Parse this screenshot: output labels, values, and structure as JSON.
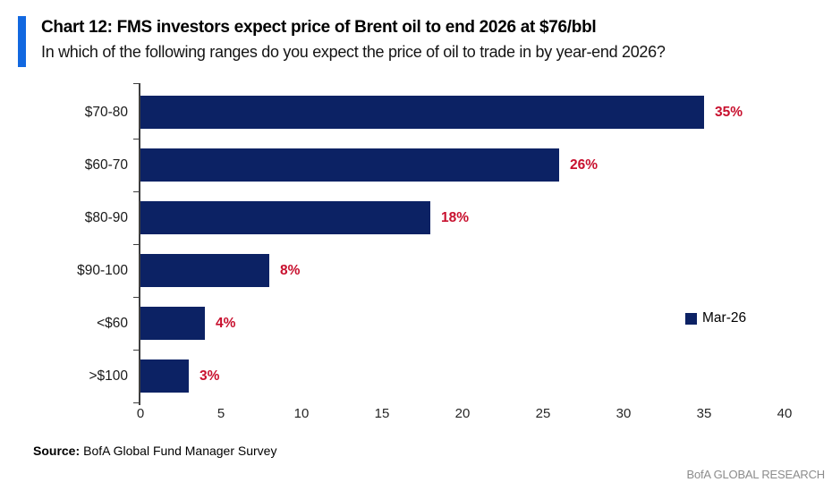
{
  "header": {
    "title": "Chart 12: FMS investors expect price of Brent oil to end 2026 at $76/bbl",
    "subtitle": "In which of the following ranges do you expect the price of oil to trade in by year-end 2026?",
    "accent_color": "#1268e0"
  },
  "chart_data": {
    "type": "bar",
    "orientation": "horizontal",
    "title": "Chart 12: FMS investors expect price of Brent oil to end 2026 at $76/bbl",
    "subtitle": "In which of the following ranges do you expect the price of oil to trade in by year-end 2026?",
    "categories": [
      "$70-80",
      "$60-70",
      "$80-90",
      "$90-100",
      "<$60",
      ">$100"
    ],
    "values": [
      35,
      26,
      18,
      8,
      4,
      3
    ],
    "value_labels": [
      "35%",
      "26%",
      "18%",
      "8%",
      "4%",
      "3%"
    ],
    "series_name": "Mar-26",
    "xlim": [
      0,
      40
    ],
    "x_ticks": [
      "0",
      "5",
      "10",
      "15",
      "20",
      "25",
      "30",
      "35",
      "40"
    ],
    "grid": false,
    "legend_position": "middle-right",
    "bar_color": "#0c2264",
    "value_label_color": "#c8102e",
    "axis_color": "#3f3f3f"
  },
  "legend": {
    "label": "Mar-26",
    "swatch_color": "#0c2264"
  },
  "footer": {
    "source_label": "Source:",
    "source_text": "BofA Global Fund Manager Survey",
    "branding": "BofA GLOBAL RESEARCH"
  }
}
